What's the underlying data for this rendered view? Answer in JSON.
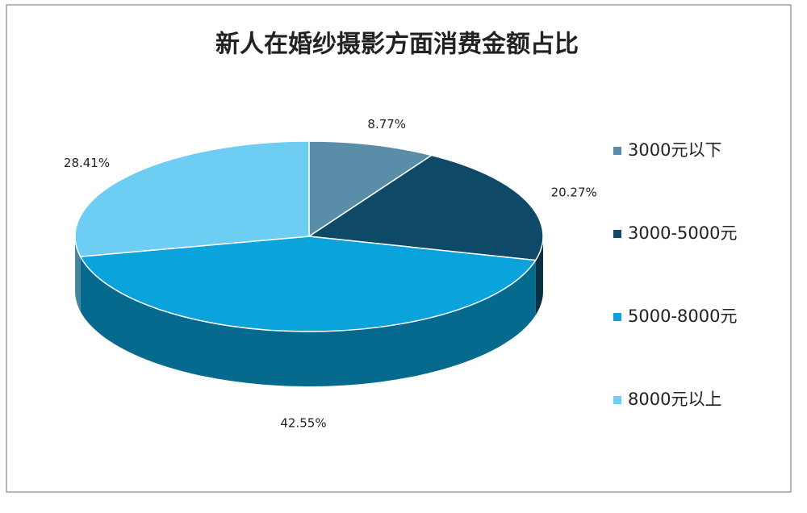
{
  "chart_data": {
    "type": "pie",
    "title": "新人在婚纱摄影方面消费金额占比",
    "categories": [
      "3000元以下",
      "3000-5000元",
      "5000-8000元",
      "8000元以上"
    ],
    "values": [
      8.77,
      20.27,
      42.55,
      28.41
    ],
    "value_labels": [
      "8.77%",
      "20.27%",
      "42.55%",
      "28.41%"
    ],
    "colors": [
      "#5a8ea8",
      "#0e4a67",
      "#0aa3dc",
      "#6dcdf3"
    ],
    "legend": "right"
  }
}
